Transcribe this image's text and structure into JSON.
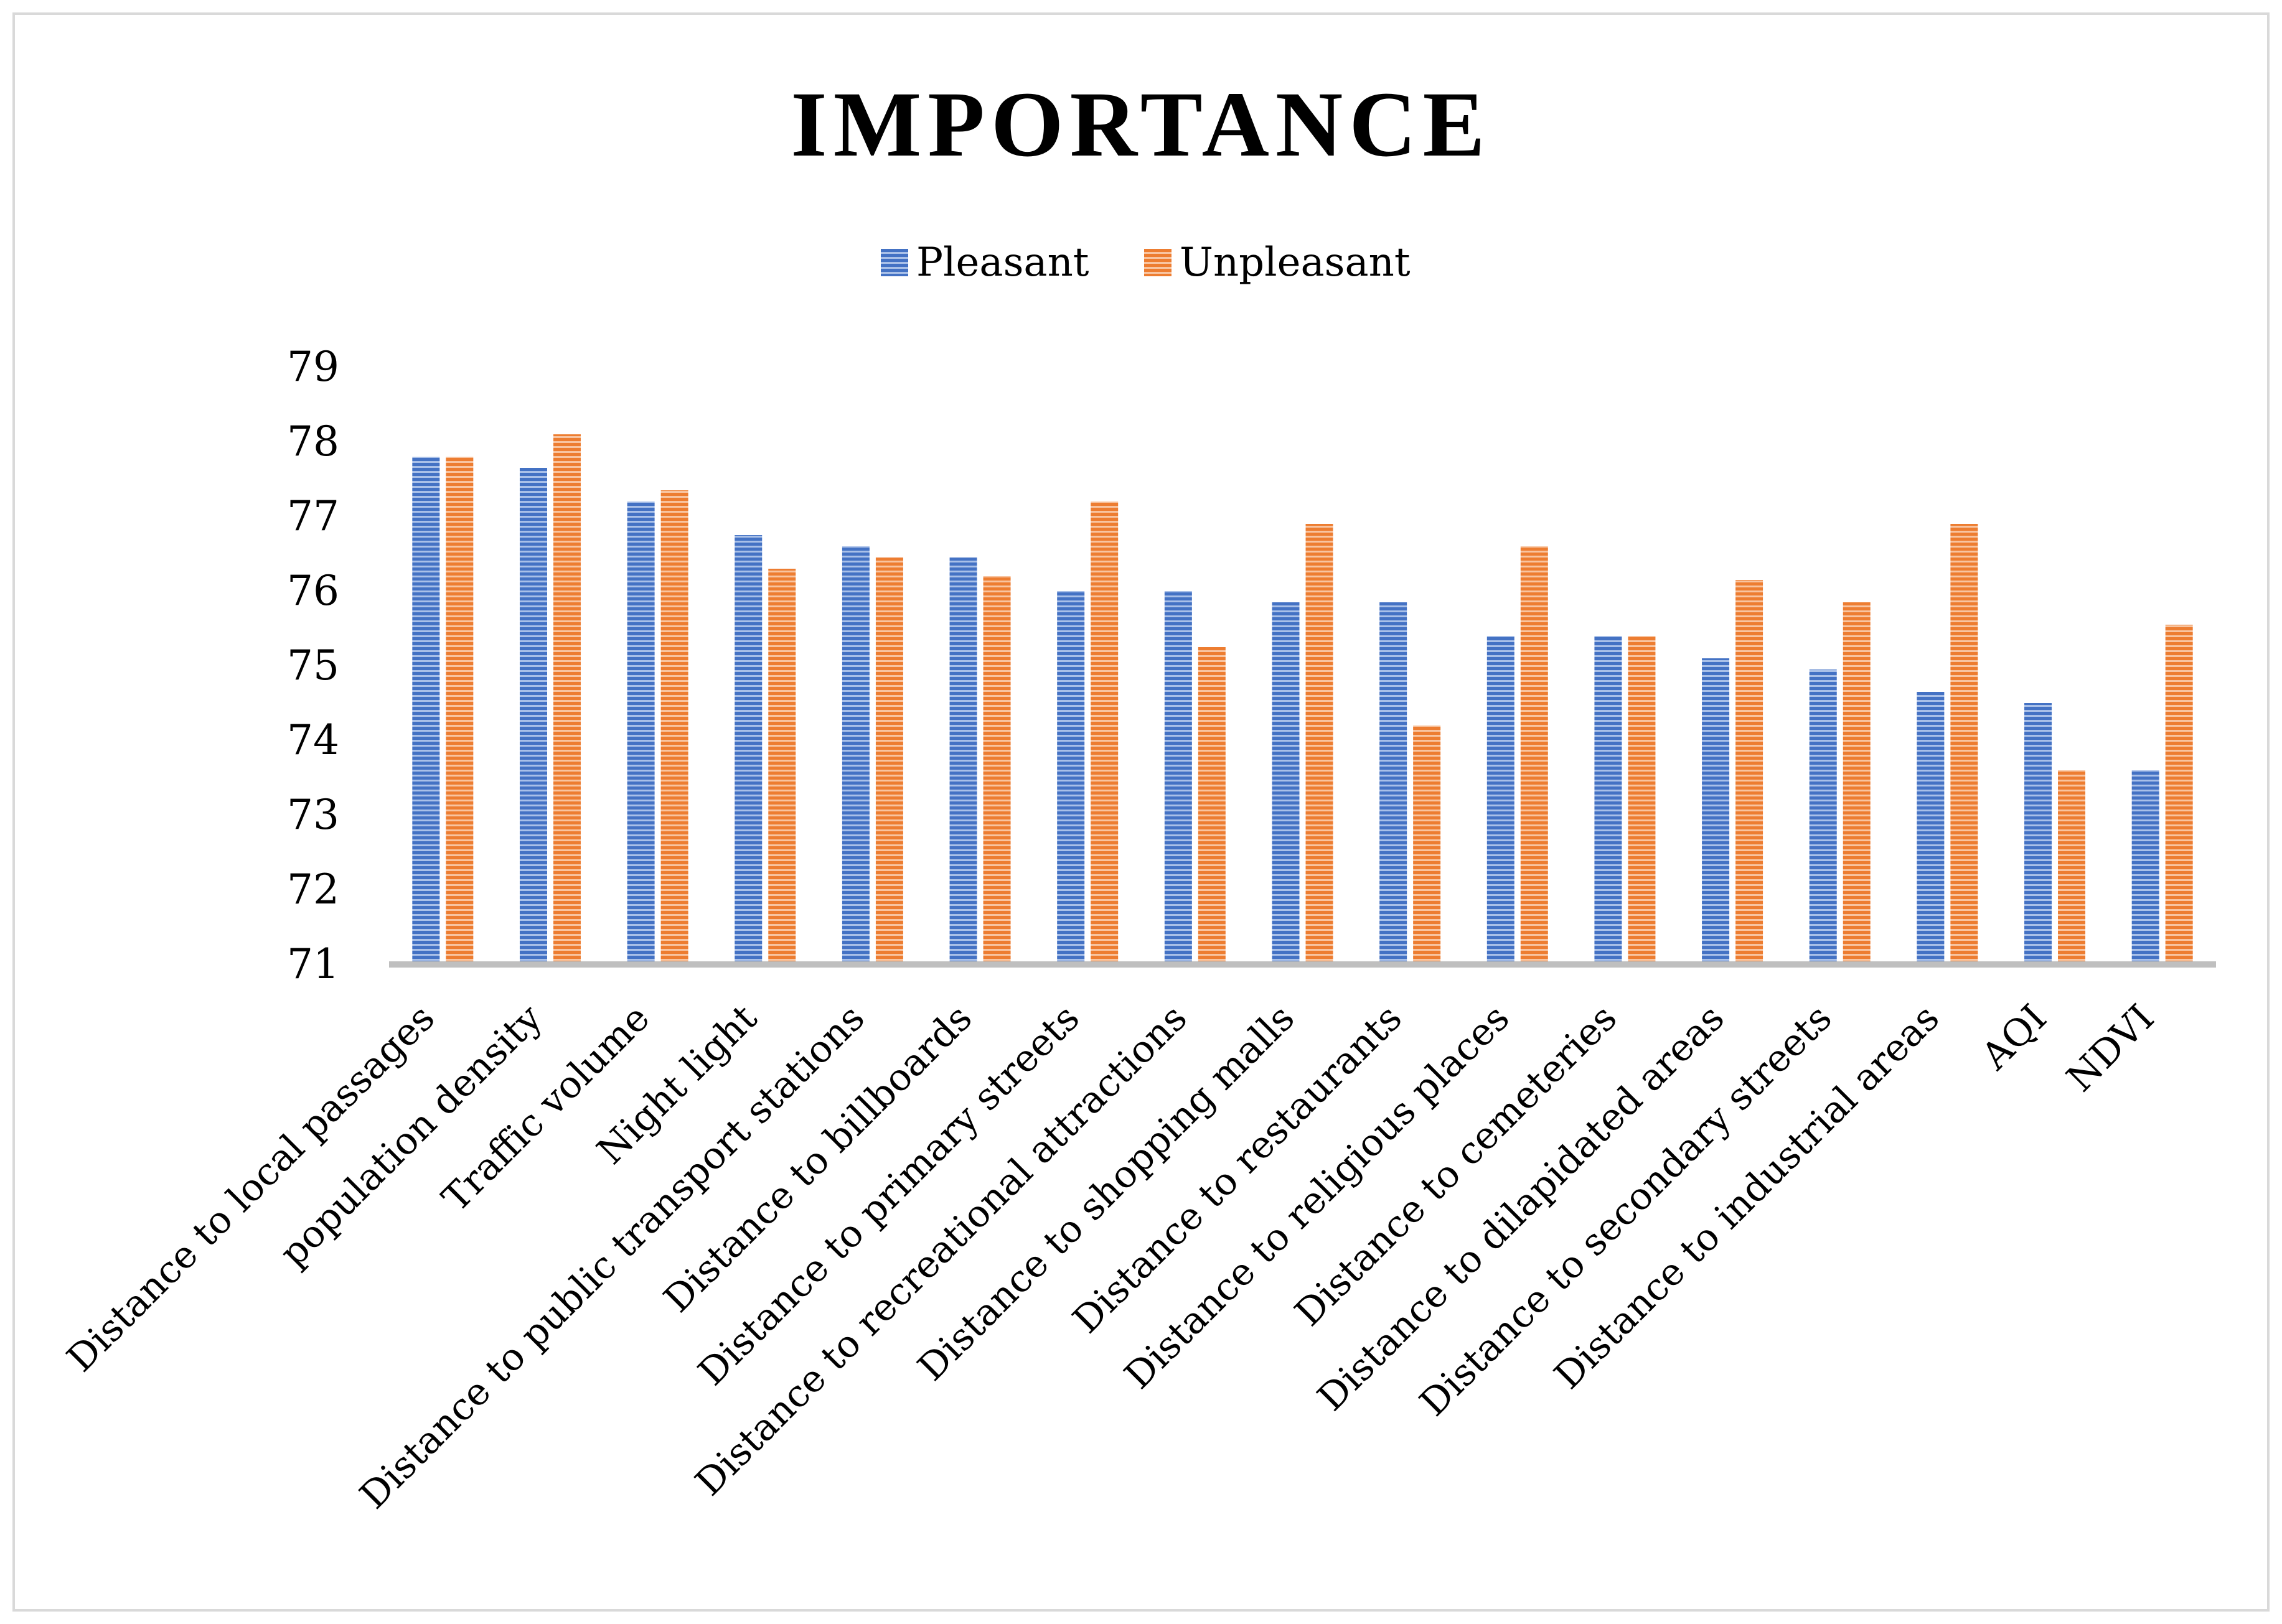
{
  "chart_data": {
    "type": "bar",
    "title": "IMPORTANCE",
    "xlabel": "",
    "ylabel": "",
    "ylim": [
      71,
      79
    ],
    "yticks": [
      71,
      72,
      73,
      74,
      75,
      76,
      77,
      78,
      79
    ],
    "grid": false,
    "legend_position": "top-center",
    "categories": [
      "Distance to local passages",
      "population density",
      "Traffic volume",
      "Night light",
      "Distance to public transport stations",
      "Distance to billboards",
      "Distance to primary streets",
      "Distance to recreational attractions",
      "Distance to shopping malls",
      "Distance to restaurants",
      "Distance to religious places",
      "Distance to cemeteries",
      "Distance to dilapidated areas",
      "Distance to secondary streets",
      "Distance to industrial areas",
      "AQI",
      "NDVI"
    ],
    "series": [
      {
        "name": "Pleasant",
        "color": "#4472C4",
        "values": [
          77.8,
          77.65,
          77.2,
          76.75,
          76.6,
          76.45,
          76.0,
          76.0,
          75.85,
          75.85,
          75.4,
          75.4,
          75.1,
          74.95,
          74.65,
          74.5,
          73.6
        ]
      },
      {
        "name": "Unpleasant",
        "color": "#ED7D31",
        "values": [
          77.8,
          78.1,
          77.35,
          76.3,
          76.45,
          76.2,
          77.2,
          75.25,
          76.9,
          74.2,
          76.6,
          75.4,
          76.15,
          75.85,
          76.9,
          73.6,
          75.55
        ]
      }
    ]
  }
}
